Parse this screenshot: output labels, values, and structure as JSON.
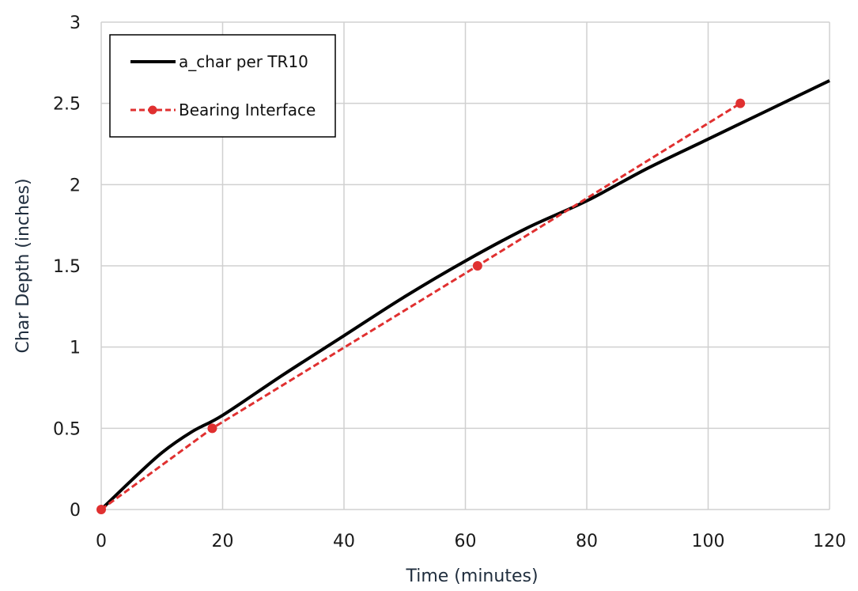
{
  "chart_data": {
    "type": "line",
    "title": "",
    "xlabel": "Time (minutes)",
    "ylabel": "Char Depth (inches)",
    "xlim": [
      0,
      120
    ],
    "ylim": [
      0,
      3
    ],
    "x_ticks": [
      0,
      20,
      40,
      60,
      80,
      100,
      120
    ],
    "y_ticks": [
      0,
      0.5,
      1,
      1.5,
      2,
      2.5,
      3
    ],
    "x_tick_labels": [
      "0",
      "20",
      "40",
      "60",
      "80",
      "100",
      "120"
    ],
    "y_tick_labels": [
      "0",
      "0.5",
      "1",
      "1.5",
      "2",
      "2.5",
      "3"
    ],
    "grid": true,
    "legend_position": "top-left",
    "series": [
      {
        "name": "a_char per TR10",
        "style": "solid",
        "color": "#000000",
        "markers": false,
        "x": [
          0,
          5,
          10,
          15,
          20,
          30,
          40,
          50,
          60,
          70,
          80,
          90,
          100,
          110,
          120
        ],
        "y": [
          0,
          0.18,
          0.35,
          0.48,
          0.58,
          0.83,
          1.07,
          1.31,
          1.53,
          1.73,
          1.9,
          2.1,
          2.28,
          2.46,
          2.64
        ]
      },
      {
        "name": "Bearing Interface",
        "style": "dashed",
        "color": "#e03030",
        "markers": true,
        "x": [
          0,
          18.3,
          62,
          105.3
        ],
        "y": [
          0,
          0.5,
          1.5,
          2.5
        ]
      }
    ]
  }
}
